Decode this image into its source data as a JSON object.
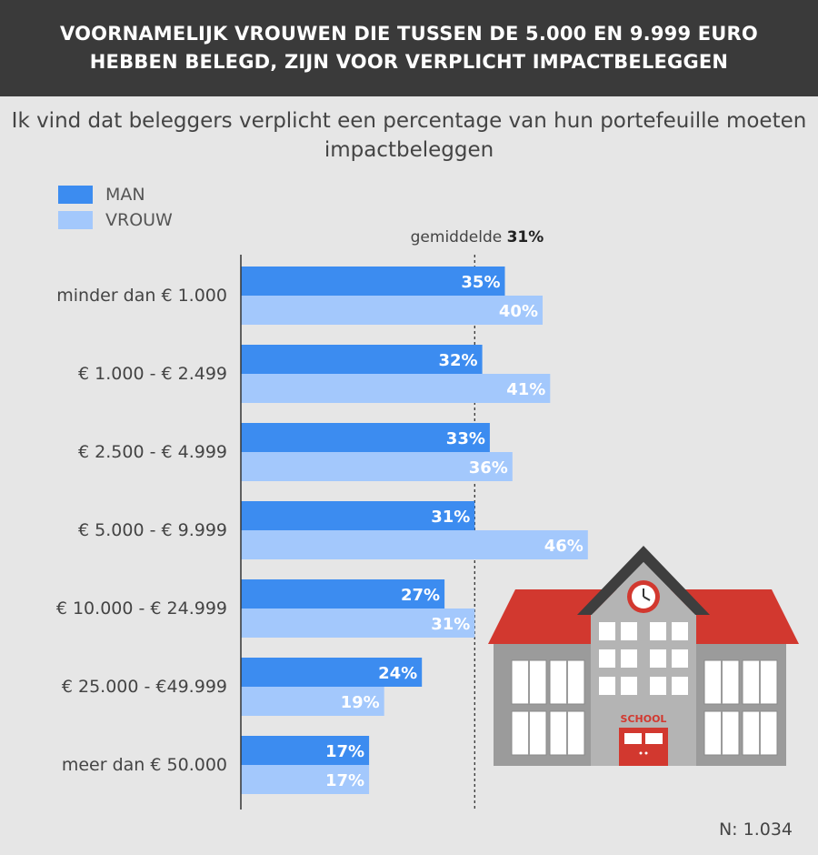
{
  "header": {
    "title": "VOORNAMELIJK VROUWEN DIE TUSSEN DE 5.000 EN 9.999 EURO HEBBEN BELEGD, ZIJN VOOR VERPLICHT IMPACTBELEGGEN"
  },
  "subtitle": "Ik vind dat beleggers verplicht een percentage van hun portefeuille moeten impactbeleggen",
  "legend": [
    {
      "label": "MAN",
      "color": "#3c8cf0"
    },
    {
      "label": "VROUW",
      "color": "#a3c8fc"
    }
  ],
  "average": {
    "label": "gemiddelde",
    "value_label": "31%",
    "value": 31
  },
  "sample": "N: 1.034",
  "colors": {
    "man": "#3c8cf0",
    "vrouw": "#a3c8fc",
    "header_bg": "#3a3a3a",
    "background": "#e6e6e6"
  },
  "illustration": {
    "sign": "SCHOOL",
    "icon": "school-building-icon"
  },
  "chart_data": {
    "type": "bar",
    "orientation": "horizontal",
    "categories": [
      "minder dan € 1.000",
      "€ 1.000 - € 2.499",
      "€ 2.500 - € 4.999",
      "€ 5.000 - € 9.999",
      "€ 10.000 - € 24.999",
      "€ 25.000 - €49.999",
      "meer dan € 50.000"
    ],
    "series": [
      {
        "name": "MAN",
        "values": [
          35,
          32,
          33,
          31,
          27,
          24,
          17
        ]
      },
      {
        "name": "VROUW",
        "values": [
          40,
          41,
          36,
          46,
          31,
          19,
          17
        ]
      }
    ],
    "value_labels": [
      [
        "35%",
        "32%",
        "33%",
        "31%",
        "27%",
        "24%",
        "17%"
      ],
      [
        "40%",
        "41%",
        "36%",
        "46%",
        "31%",
        "19%",
        "17%"
      ]
    ],
    "reference_line": 31,
    "xlim": [
      0,
      46
    ],
    "grid": false,
    "legend_position": "top-left"
  }
}
